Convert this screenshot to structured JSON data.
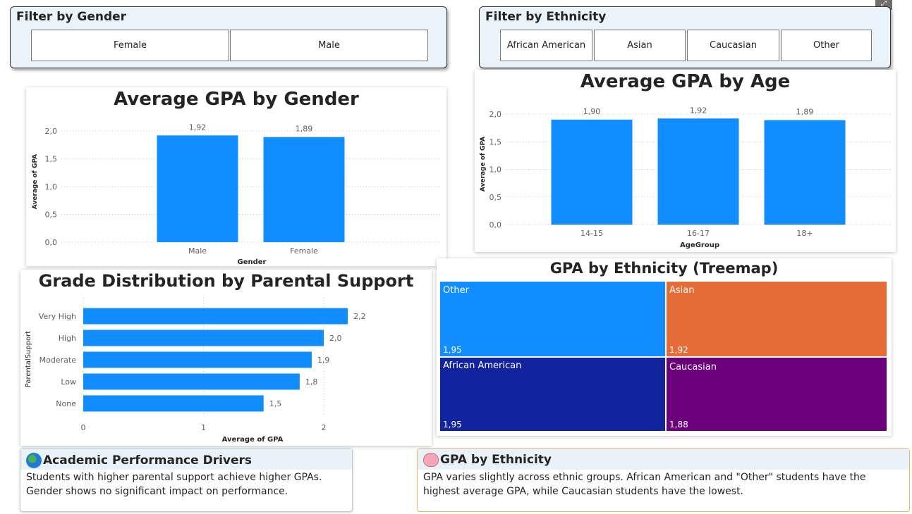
{
  "gender_filter": {
    "title": "Filter by Gender",
    "options": [
      "Female",
      "Male"
    ]
  },
  "ethnicity_filter": {
    "title": "Filter by Ethnicity",
    "options": [
      "African American",
      "Asian",
      "Caucasian",
      "Other"
    ]
  },
  "gender_chart": {
    "title": "Average GPA by Gender",
    "xlabel": "Gender",
    "ylabel": "Average of GPA",
    "yticks": [
      "0,0",
      "0,5",
      "1,0",
      "1,5",
      "2,0"
    ],
    "labels": [
      "1,92",
      "1,89"
    ]
  },
  "age_chart": {
    "title": "Average GPA by Age",
    "xlabel": "AgeGroup",
    "ylabel": "Average of GPA",
    "yticks": [
      "0,0",
      "0,5",
      "1,0",
      "1,5",
      "2,0"
    ],
    "labels": [
      "1,90",
      "1,92",
      "1,89"
    ]
  },
  "support_chart": {
    "title": "Grade Distribution by Parental Support",
    "xlabel": "Average of GPA",
    "ylabel": "ParentalSupport",
    "xticks": [
      "0",
      "1",
      "2"
    ],
    "labels": [
      "2,2",
      "2,0",
      "1,9",
      "1,8",
      "1,5"
    ]
  },
  "treemap": {
    "title": "GPA by Ethnicity (Treemap)",
    "cells": [
      {
        "name": "Other",
        "value": "1,95",
        "color": "#118dff"
      },
      {
        "name": "Asian",
        "value": "1,92",
        "color": "#e66c37"
      },
      {
        "name": "African American",
        "value": "1,95",
        "color": "#12239e"
      },
      {
        "name": "Caucasian",
        "value": "1,88",
        "color": "#6b007b"
      }
    ]
  },
  "drivers_box": {
    "title": "Academic Performance Drivers",
    "icon": "globe-icon",
    "text": "Students with higher parental support achieve higher GPAs. Gender shows no significant impact on performance."
  },
  "ethnicity_box": {
    "title": "GPA by Ethnicity",
    "icon": "brain-icon",
    "text": "GPA varies slightly across ethnic groups.  African American and \"Other\" students have the highest average GPA, while Caucasian students have the lowest."
  },
  "colors": {
    "bar": "#118dff",
    "accent_border": "#f2b36b"
  },
  "chart_data": [
    {
      "type": "bar",
      "title": "Average GPA by Gender",
      "categories": [
        "Male",
        "Female"
      ],
      "values": [
        1.92,
        1.89
      ],
      "xlabel": "Gender",
      "ylabel": "Average of GPA",
      "ylim": [
        0,
        2.0
      ],
      "grid": true,
      "legend": "none"
    },
    {
      "type": "bar",
      "title": "Average GPA by Age",
      "categories": [
        "14-15",
        "16-17",
        "18+"
      ],
      "values": [
        1.9,
        1.92,
        1.89
      ],
      "xlabel": "AgeGroup",
      "ylabel": "Average of GPA",
      "ylim": [
        0,
        2.0
      ],
      "grid": true,
      "legend": "none"
    },
    {
      "type": "bar",
      "orientation": "horizontal",
      "title": "Grade Distribution by Parental Support",
      "categories": [
        "Very High",
        "High",
        "Moderate",
        "Low",
        "None"
      ],
      "values": [
        2.2,
        2.0,
        1.9,
        1.8,
        1.5
      ],
      "xlabel": "Average of GPA",
      "ylabel": "ParentalSupport",
      "xlim": [
        0,
        2.2
      ],
      "grid": true,
      "legend": "none"
    },
    {
      "type": "treemap",
      "title": "GPA by Ethnicity (Treemap)",
      "categories": [
        "Other",
        "Asian",
        "African American",
        "Caucasian"
      ],
      "values": [
        1.95,
        1.92,
        1.95,
        1.88
      ]
    }
  ]
}
